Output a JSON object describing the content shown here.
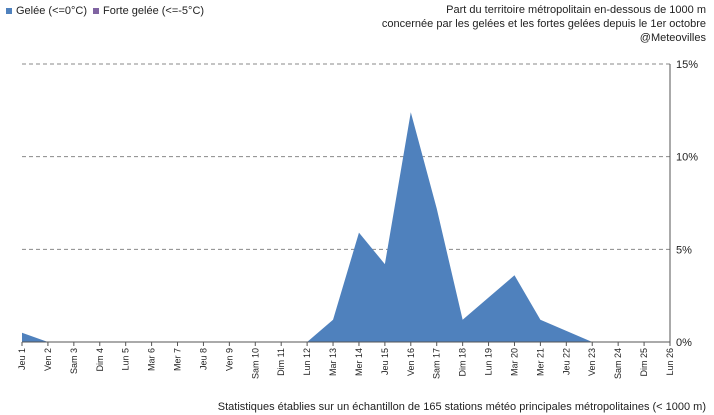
{
  "legend": {
    "items": [
      {
        "label": "Gelée (<=0°C)",
        "color": "#4f81bd"
      },
      {
        "label": "Forte gelée (<=-5°C)",
        "color": "#8064a2"
      }
    ]
  },
  "title_lines": [
    "Part du territoire métropolitain en-dessous de 1000 m",
    "concernée par les gelées et les fortes gelées depuis le 1er octobre",
    "@Meteovilles"
  ],
  "footnote": "Statistiques établies sur un échantillon de 165 stations météo principales métropolitaines (< 1000 m)",
  "chart_data": {
    "type": "area",
    "categories": [
      "Jeu 1",
      "Ven 2",
      "Sam 3",
      "Dim 4",
      "Lun 5",
      "Mar 6",
      "Mer 7",
      "Jeu 8",
      "Ven 9",
      "Sam 10",
      "Dim 11",
      "Lun 12",
      "Mar 13",
      "Mer 14",
      "Jeu 15",
      "Ven 16",
      "Sam 17",
      "Dim 18",
      "Lun 19",
      "Mar 20",
      "Mer 21",
      "Jeu 22",
      "Ven 23",
      "Sam 24",
      "Dim 25",
      "Lun 26"
    ],
    "series": [
      {
        "name": "Gelée (<=0°C)",
        "color": "#4f81bd",
        "values": [
          0.5,
          0,
          0,
          0,
          0,
          0,
          0,
          0,
          0,
          0,
          0,
          0,
          1.2,
          5.9,
          4.2,
          12.4,
          7.2,
          1.2,
          2.4,
          3.6,
          1.2,
          0.6,
          0,
          0,
          0,
          0
        ]
      },
      {
        "name": "Forte gelée (<=-5°C)",
        "color": "#8064a2",
        "values": [
          0,
          0,
          0,
          0,
          0,
          0,
          0,
          0,
          0,
          0,
          0,
          0,
          0,
          0,
          0,
          0,
          0,
          0,
          0,
          0,
          0,
          0,
          0,
          0,
          0,
          0
        ]
      }
    ],
    "y_ticks": [
      "0%",
      "5%",
      "10%",
      "15%"
    ],
    "ylim": [
      0,
      15
    ],
    "y_axis_side": "right",
    "grid": "horizontal dashed",
    "legend_position": "top-left"
  }
}
